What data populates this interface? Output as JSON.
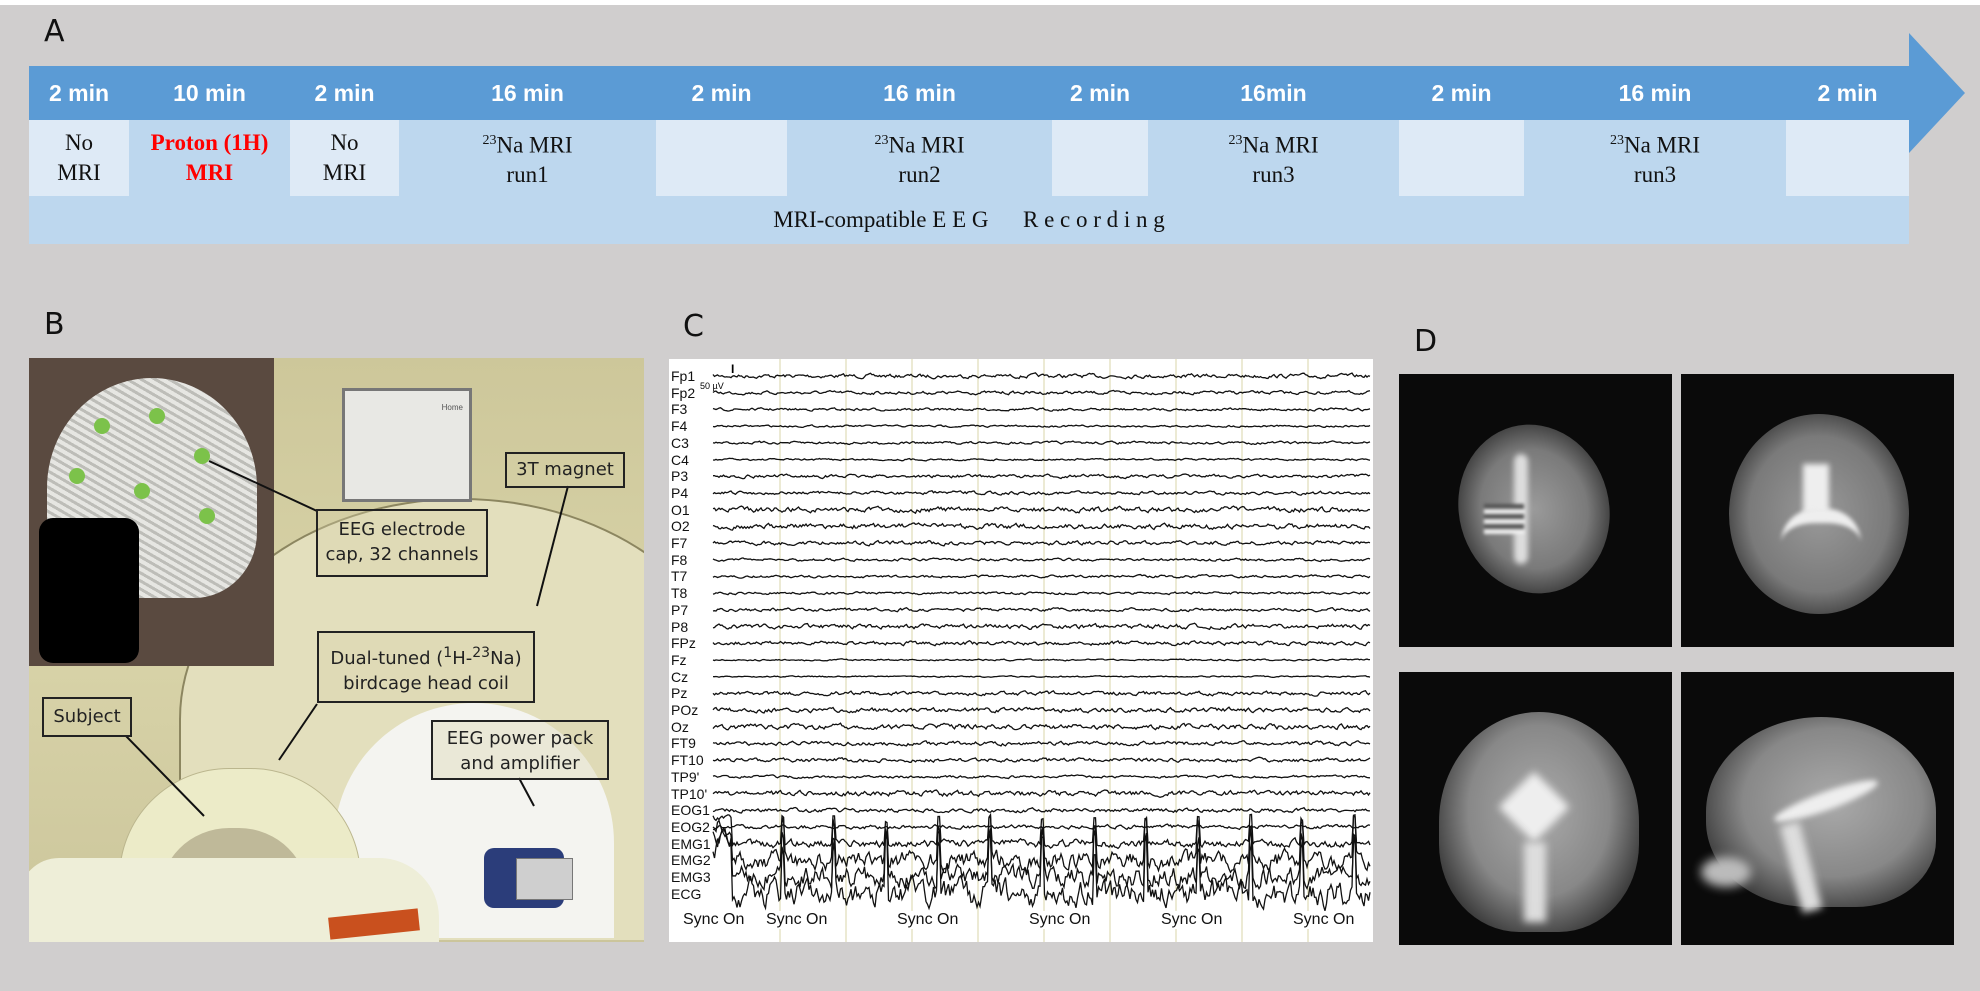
{
  "panels": {
    "a": "A",
    "b": "B",
    "c": "C",
    "d": "D"
  },
  "timeline": {
    "bar_color": "#5b9bd5",
    "segments": [
      {
        "duration": "2 min",
        "line1": "No",
        "line2": "MRI",
        "sup": "",
        "style": "light"
      },
      {
        "duration": "10 min",
        "line1": "Proton (1H)",
        "line2": "MRI",
        "sup": "",
        "style": "red"
      },
      {
        "duration": "2 min",
        "line1": "No",
        "line2": "MRI",
        "sup": "",
        "style": "light"
      },
      {
        "duration": "16 min",
        "line1": "Na MRI",
        "line2": "run1",
        "sup": "23",
        "style": "mid"
      },
      {
        "duration": "2 min",
        "line1": "",
        "line2": "",
        "sup": "",
        "style": "light"
      },
      {
        "duration": "16 min",
        "line1": "Na MRI",
        "line2": "run2",
        "sup": "23",
        "style": "mid"
      },
      {
        "duration": "2 min",
        "line1": "",
        "line2": "",
        "sup": "",
        "style": "light"
      },
      {
        "duration": "16min",
        "line1": "Na MRI",
        "line2": "run3",
        "sup": "23",
        "style": "mid"
      },
      {
        "duration": "2 min",
        "line1": "",
        "line2": "",
        "sup": "",
        "style": "light"
      },
      {
        "duration": "16 min",
        "line1": "Na MRI",
        "line2": "run3",
        "sup": "23",
        "style": "mid"
      },
      {
        "duration": "2 min",
        "line1": "",
        "line2": "",
        "sup": "",
        "style": "light"
      }
    ],
    "recording": "MRI-compatible E E G      R e c o r d i n g"
  },
  "photo": {
    "callouts": {
      "magnet": "3T magnet",
      "cap1": "EEG electrode",
      "cap2": "cap, 32 channels",
      "coil1a": "Dual-tuned (",
      "coil1sup1": "1",
      "coil1b": "H-",
      "coil1sup2": "23",
      "coil1c": "Na)",
      "coil2": "birdcage head coil",
      "subject": "Subject",
      "amp1": "EEG power pack",
      "amp2": "and amplifier"
    },
    "screen_text": "Home"
  },
  "eeg": {
    "channels": [
      "Fp1",
      "Fp2",
      "F3",
      "F4",
      "C3",
      "C4",
      "P3",
      "P4",
      "O1",
      "O2",
      "F7",
      "F8",
      "T7",
      "T8",
      "P7",
      "P8",
      "FPz",
      "Fz",
      "Cz",
      "Pz",
      "POz",
      "Oz",
      "FT9",
      "FT10",
      "TP9'",
      "TP10'",
      "EOG1",
      "EOG2",
      "EMG1",
      "EMG2",
      "EMG3",
      "ECG"
    ],
    "scale": "50 µV",
    "sync_label": "Sync On",
    "sync_count": 6
  }
}
